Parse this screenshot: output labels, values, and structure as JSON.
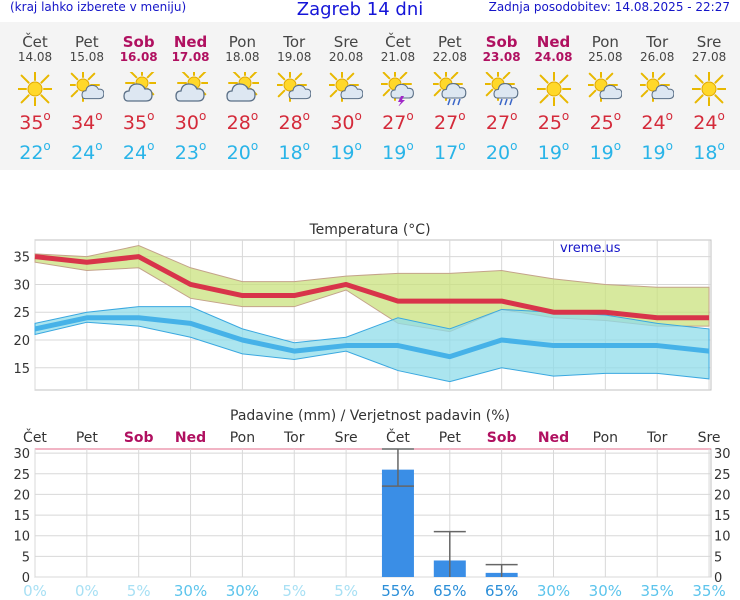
{
  "header": {
    "menu_hint": "(kraj lahko izberete v meniju)",
    "title": "Zagreb 14 dni",
    "updated": "Zadnja posodobitev: 14.08.2025 - 22:27"
  },
  "days": [
    {
      "name": "Čet",
      "date": "14.08",
      "weekend": false,
      "icon": "sun-icon",
      "max": "35",
      "min": "22"
    },
    {
      "name": "Pet",
      "date": "15.08",
      "weekend": false,
      "icon": "sun-cloud-icon",
      "max": "34",
      "min": "24"
    },
    {
      "name": "Sob",
      "date": "16.08",
      "weekend": true,
      "icon": "cloud-sun-icon",
      "max": "35",
      "min": "24"
    },
    {
      "name": "Ned",
      "date": "17.08",
      "weekend": true,
      "icon": "cloud-sun-icon",
      "max": "30",
      "min": "23"
    },
    {
      "name": "Pon",
      "date": "18.08",
      "weekend": false,
      "icon": "cloud-sun-icon",
      "max": "28",
      "min": "20"
    },
    {
      "name": "Tor",
      "date": "19.08",
      "weekend": false,
      "icon": "sun-cloud-icon",
      "max": "28",
      "min": "18"
    },
    {
      "name": "Sre",
      "date": "20.08",
      "weekend": false,
      "icon": "sun-cloud-icon",
      "max": "30",
      "min": "19"
    },
    {
      "name": "Čet",
      "date": "21.08",
      "weekend": false,
      "icon": "sun-storm-icon",
      "max": "27",
      "min": "19"
    },
    {
      "name": "Pet",
      "date": "22.08",
      "weekend": false,
      "icon": "sun-rain-icon",
      "max": "27",
      "min": "17"
    },
    {
      "name": "Sob",
      "date": "23.08",
      "weekend": true,
      "icon": "sun-rain-icon",
      "max": "27",
      "min": "20"
    },
    {
      "name": "Ned",
      "date": "24.08",
      "weekend": true,
      "icon": "sun-icon",
      "max": "25",
      "min": "19"
    },
    {
      "name": "Pon",
      "date": "25.08",
      "weekend": false,
      "icon": "sun-cloud-icon",
      "max": "25",
      "min": "19"
    },
    {
      "name": "Tor",
      "date": "26.08",
      "weekend": false,
      "icon": "sun-cloud-icon",
      "max": "24",
      "min": "19"
    },
    {
      "name": "Sre",
      "date": "27.08",
      "weekend": false,
      "icon": "sun-icon",
      "max": "24",
      "min": "18"
    }
  ],
  "chart_data": [
    {
      "type": "line",
      "title": "Temperatura (°C)",
      "watermark": "vreme.us",
      "ylim": [
        11,
        38
      ],
      "yticks": [
        15,
        20,
        25,
        30,
        35
      ],
      "grid": true,
      "series": [
        {
          "values": [
            35,
            34,
            35,
            30,
            28,
            28,
            30,
            27,
            27,
            27,
            25,
            25,
            24,
            24
          ],
          "upper": [
            35.5,
            35,
            37,
            33,
            30.5,
            30.5,
            31.5,
            32,
            32,
            32.5,
            31,
            30,
            29.5,
            29.5
          ],
          "lower": [
            34,
            32.5,
            33,
            27.5,
            26,
            26,
            29,
            23,
            21.5,
            25.5,
            24,
            23.5,
            22.5,
            22.5
          ],
          "color": "#d8344a",
          "band_color": "#c9e27e"
        },
        {
          "values": [
            22,
            24,
            24,
            23,
            20,
            18,
            19,
            19,
            17,
            20,
            19,
            19,
            19,
            18
          ],
          "upper": [
            23,
            25,
            26,
            26,
            22,
            19.5,
            20.5,
            24,
            22,
            25.5,
            25,
            24.5,
            23,
            22
          ],
          "lower": [
            21,
            23.2,
            22.5,
            20.5,
            17.5,
            16.5,
            18,
            14.5,
            12.5,
            15,
            13.5,
            14,
            14,
            13
          ],
          "color": "#46b2e8",
          "band_color": "#8fdcea"
        }
      ]
    },
    {
      "type": "bar",
      "title": "Padavine (mm) / Verjetnost padavin (%)",
      "ylim": [
        0,
        31
      ],
      "yticks": [
        0,
        5,
        10,
        15,
        20,
        25,
        30
      ],
      "grid": true,
      "values": [
        0,
        0,
        0,
        0,
        0,
        0,
        0,
        26,
        4,
        1,
        0,
        0,
        0,
        0
      ],
      "error_low": [
        0,
        0,
        0,
        0,
        0,
        0,
        0,
        22,
        0,
        0,
        0,
        0,
        0,
        0
      ],
      "error_high": [
        0,
        0,
        0,
        0,
        0,
        0,
        0,
        31,
        11,
        3,
        0,
        0,
        0,
        0
      ],
      "probability": [
        "0%",
        "0%",
        "5%",
        "30%",
        "30%",
        "5%",
        "5%",
        "55%",
        "65%",
        "65%",
        "30%",
        "30%",
        "35%",
        "35%"
      ],
      "bar_color": "#3a8ee6"
    }
  ],
  "colors": {
    "weekend": "#b01060",
    "max": "#d42a3a",
    "min": "#29b4e8"
  }
}
